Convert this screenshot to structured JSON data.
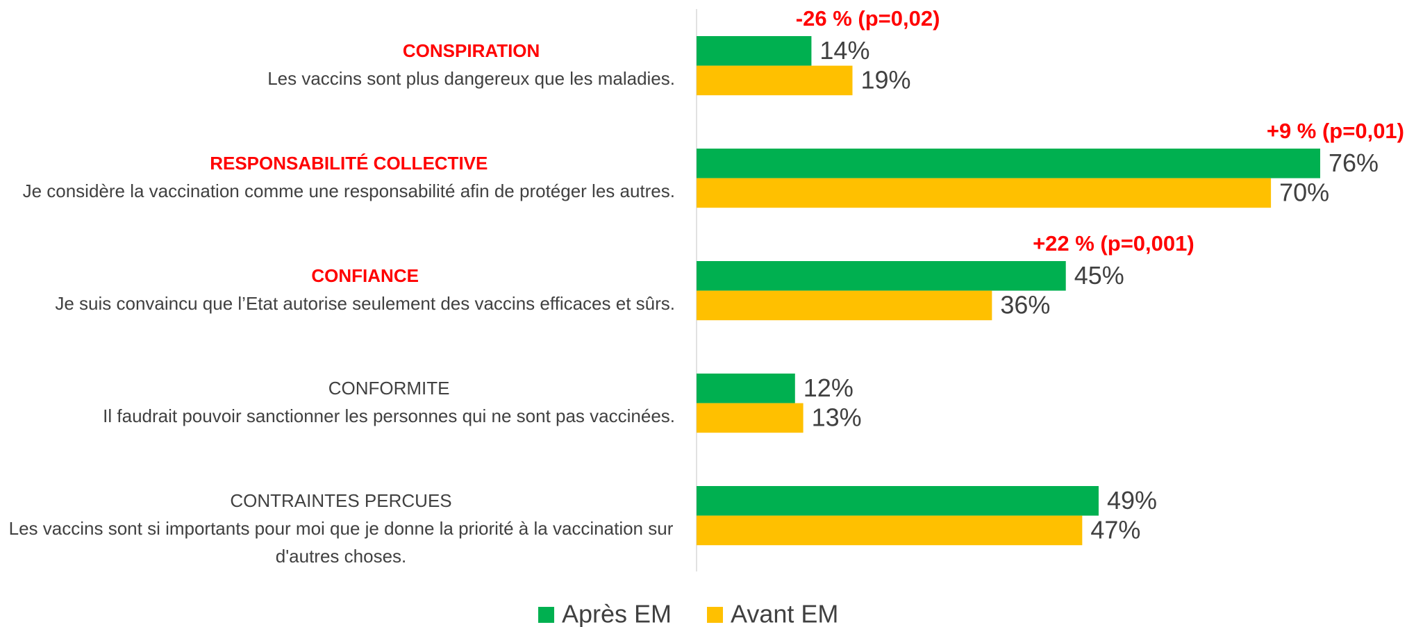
{
  "chart_data": {
    "type": "bar",
    "orientation": "horizontal",
    "category_titles": [
      "CONSPIRATION",
      "RESPONSABILITÉ COLLECTIVE",
      "CONFIANCE",
      "CONFORMITE",
      "CONTRAINTES PERCUES"
    ],
    "highlighted": [
      true,
      true,
      true,
      false,
      false
    ],
    "categories": [
      "Les vaccins sont plus dangereux que les maladies.",
      "Je considère la vaccination comme une responsabilité afin de protéger les autres.",
      "Je suis convaincu que l’Etat autorise seulement des vaccins efficaces et sûrs.",
      "Il faudrait pouvoir sanctionner les personnes qui ne sont pas vaccinées.",
      "Les vaccins sont si importants pour moi que je donne la priorité à la vaccination sur d'autres choses."
    ],
    "series": [
      {
        "name": "Après EM",
        "color": "#00b050",
        "values": [
          14,
          76,
          45,
          12,
          49
        ],
        "value_labels": [
          "14%",
          "76%",
          "45%",
          "12%",
          "49%"
        ]
      },
      {
        "name": "Avant EM",
        "color": "#ffc000",
        "values": [
          19,
          70,
          36,
          13,
          47
        ],
        "value_labels": [
          "19%",
          "70%",
          "36%",
          "13%",
          "47%"
        ]
      }
    ],
    "annotations": [
      "-26 % (p=0,02)",
      "+9 % (p=0,01)",
      "+22 % (p=0,001)",
      null,
      null
    ],
    "legend": "bottom"
  }
}
